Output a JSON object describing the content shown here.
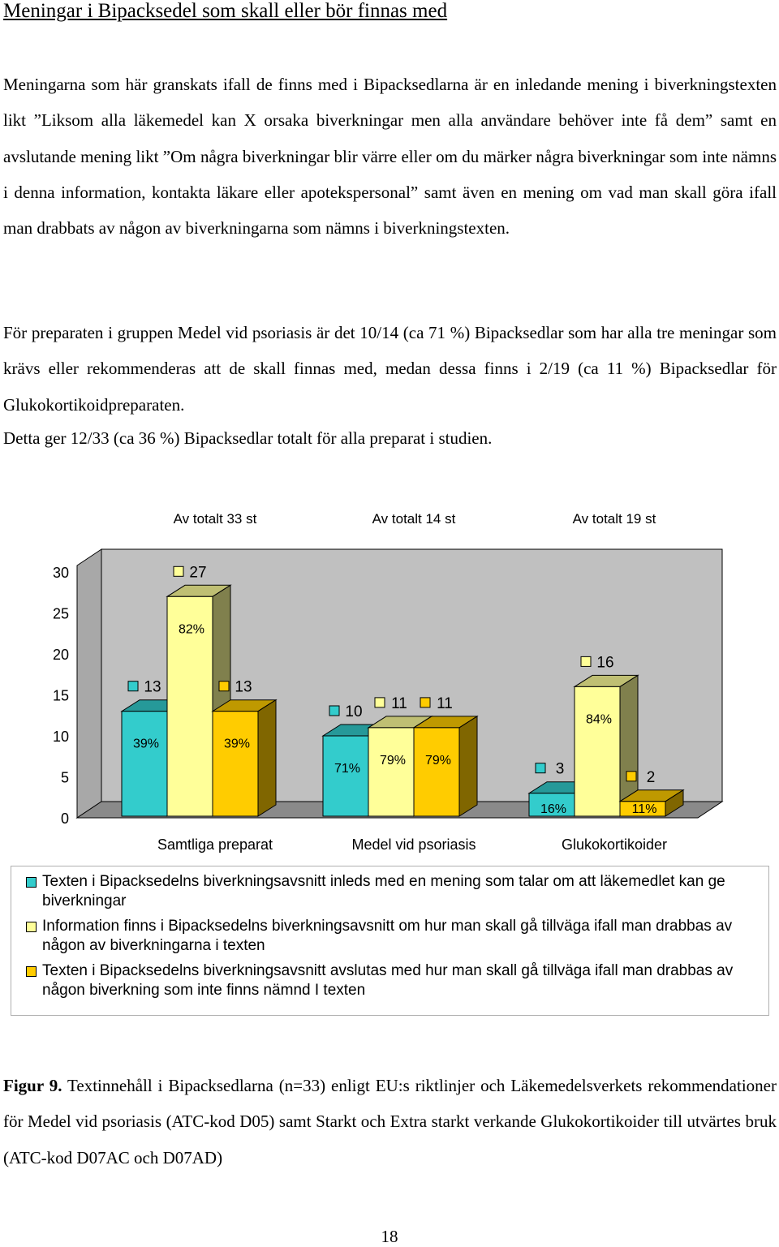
{
  "document": {
    "heading": "Meningar i Bipacksedel som skall eller bör finnas med",
    "paragraphs": [
      "Meningarna som här granskats ifall de finns med i Bipacksedlarna är en inledande mening i biverkningstexten likt ”Liksom alla läkemedel kan X orsaka biverkningar men alla användare behöver inte få dem” samt en avslutande mening likt ”Om några biverkningar blir värre eller om du märker några biverkningar som inte nämns i denna information, kontakta läkare eller apotekspersonal” samt även en mening om vad man skall göra ifall man drabbats av någon av biverkningarna som nämns i biverkningstexten.",
      "För preparaten i gruppen Medel vid psoriasis är det 10/14 (ca 71 %) Bipacksedlar som har alla tre meningar som krävs eller rekommenderas att de skall finnas med, medan dessa finns i 2/19 (ca 11 %) Bipacksedlar för Glukokortikoidpreparaten.",
      "Detta ger 12/33 (ca 36 %) Bipacksedlar totalt för alla preparat i studien."
    ],
    "caption_label": "Figur 9.",
    "caption_text": " Textinnehåll i Bipacksedlarna (n=33) enligt EU:s riktlinjer och Läkemedelsverkets rekommendationer för Medel vid psoriasis (ATC-kod D05) samt Starkt och Extra starkt verkande Glukokortikoider till utvärtes bruk (ATC-kod D07AC och D07AD)",
    "page_number": "18"
  },
  "chart_data": {
    "type": "bar",
    "subtype": "3d-clustered-column",
    "group_headers": [
      "Av totalt 33 st",
      "Av totalt 14 st",
      "Av totalt 19 st"
    ],
    "categories": [
      "Samtliga preparat",
      "Medel vid psoriasis",
      "Glukokortikoider"
    ],
    "series": [
      {
        "name": "Texten i Bipacksedelns biverkningsavsnitt inleds med en mening som talar om att läkemedlet kan ge biverkningar",
        "color": "#33CCCC",
        "values": [
          13,
          10,
          3
        ],
        "value_labels": [
          "13",
          "10",
          "3"
        ],
        "percent_labels": [
          "39%",
          "71%",
          "16%"
        ]
      },
      {
        "name": "Information finns i Bipacksedelns biverkningsavsnitt om hur man skall gå tillväga ifall man drabbas av någon av biverkningarna i texten",
        "color": "#FFFF99",
        "values": [
          27,
          11,
          16
        ],
        "value_labels": [
          "27",
          "11",
          "16"
        ],
        "percent_labels": [
          "82%",
          "79%",
          "84%"
        ]
      },
      {
        "name": "Texten i Bipacksedelns biverkningsavsnitt avslutas med hur man skall gå tillväga ifall man drabbas av någon biverkning som inte finns nämnd I texten",
        "color": "#FFCC00",
        "values": [
          13,
          11,
          2
        ],
        "value_labels": [
          "13",
          "11",
          "2"
        ],
        "percent_labels": [
          "39%",
          "79%",
          "11%"
        ]
      }
    ],
    "yticks": [
      "0",
      "5",
      "10",
      "15",
      "20",
      "25",
      "30"
    ],
    "ylim": [
      0,
      30
    ],
    "grid": false,
    "legend_position": "bottom",
    "wall_color": "#C0C0C0"
  }
}
